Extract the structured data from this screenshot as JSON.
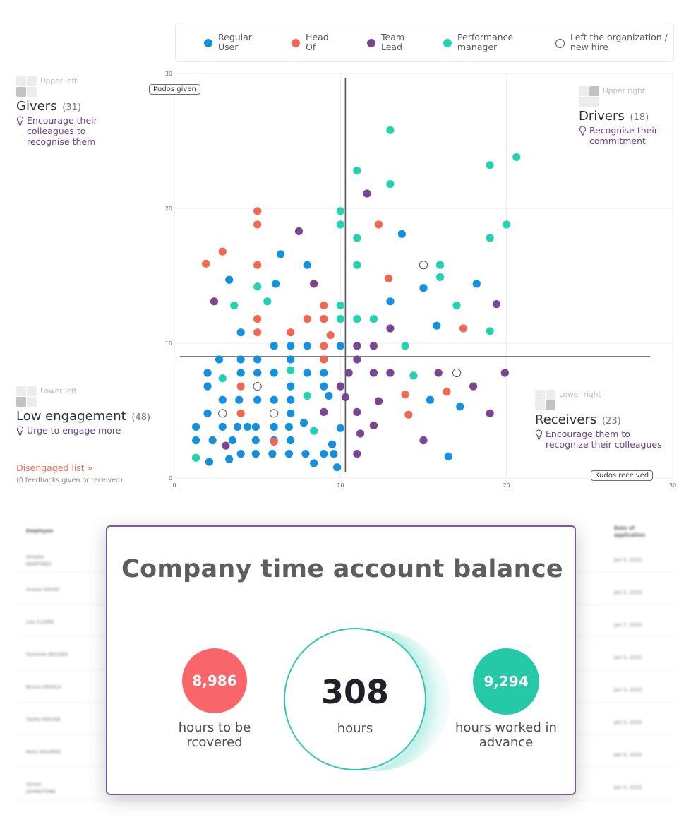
{
  "legend": [
    {
      "label": "Regular User",
      "color": "#1490e0",
      "hollow": false
    },
    {
      "label": "Head Of",
      "color": "#f2674f",
      "hollow": false
    },
    {
      "label": "Team Lead",
      "color": "#7a4592",
      "hollow": false
    },
    {
      "label": "Performance manager",
      "color": "#22d2b0",
      "hollow": false
    },
    {
      "label": "Left the organization / new hire",
      "color": "#ffffff",
      "hollow": true
    }
  ],
  "quadrants": {
    "upper_left": {
      "pos": "Upper left",
      "title": "Givers",
      "count": "(31)",
      "tip": "Encourage their colleagues to recognise them"
    },
    "upper_right": {
      "pos": "Upper right",
      "title": "Drivers",
      "count": "(18)",
      "tip": "Recognise their commitment"
    },
    "lower_left": {
      "pos": "Lower left",
      "title": "Low engagement",
      "count": "(48)",
      "tip": "Urge to engage more"
    },
    "lower_right": {
      "pos": "Lower right",
      "title": "Receivers",
      "count": "(23)",
      "tip": "Encourage them to recognize their colleagues"
    }
  },
  "disengaged": {
    "link": "Disengaged list »",
    "note": "(0 feedbacks given or received)"
  },
  "chart_data": {
    "type": "scatter",
    "xlabel": "Kudos received",
    "ylabel": "Kudos given",
    "xlim": [
      0,
      30
    ],
    "ylim": [
      0,
      30
    ],
    "xticks": [
      0,
      10,
      20,
      30
    ],
    "yticks": [
      0,
      10,
      20,
      30
    ],
    "threshold_x": 10.3,
    "threshold_y": 9,
    "grid": true,
    "series": [
      {
        "name": "Regular User",
        "color": "#1490e0",
        "points": [
          [
            1.3,
            3.8
          ],
          [
            1.3,
            2.8
          ],
          [
            2,
            7.8
          ],
          [
            2,
            6.8
          ],
          [
            2,
            4.8
          ],
          [
            2.1,
            1.2
          ],
          [
            2.3,
            2.8
          ],
          [
            2.7,
            8.8
          ],
          [
            2.9,
            5.8
          ],
          [
            2.9,
            3.8
          ],
          [
            3.3,
            1.4
          ],
          [
            3.3,
            14.7
          ],
          [
            3.5,
            2.8
          ],
          [
            3.8,
            3.8
          ],
          [
            3.9,
            5.8
          ],
          [
            4,
            1.8
          ],
          [
            4,
            7.8
          ],
          [
            4,
            8.8
          ],
          [
            4,
            10.8
          ],
          [
            4.4,
            3.8
          ],
          [
            4.9,
            3.8
          ],
          [
            4.9,
            2.8
          ],
          [
            4.9,
            1.8
          ],
          [
            5,
            5.8
          ],
          [
            5,
            7.8
          ],
          [
            5,
            8.8
          ],
          [
            5.9,
            1.8
          ],
          [
            6,
            4.8
          ],
          [
            6,
            3.8
          ],
          [
            6,
            5.8
          ],
          [
            6,
            2.8
          ],
          [
            6,
            7.8
          ],
          [
            6,
            9.8
          ],
          [
            6.1,
            14.4
          ],
          [
            6.4,
            16.6
          ],
          [
            6.9,
            1.8
          ],
          [
            6.9,
            3.8
          ],
          [
            7,
            2.8
          ],
          [
            7,
            4.8
          ],
          [
            7,
            5.8
          ],
          [
            7,
            6.8
          ],
          [
            7,
            9.8
          ],
          [
            7.9,
            1.8
          ],
          [
            7.8,
            4.1
          ],
          [
            8,
            9.8
          ],
          [
            8,
            7.8
          ],
          [
            8,
            15.8
          ],
          [
            8.4,
            1.1
          ],
          [
            9,
            1.8
          ],
          [
            9,
            6.8
          ],
          [
            9,
            7.8
          ],
          [
            9.3,
            6.1
          ],
          [
            9.5,
            2.5
          ],
          [
            9.6,
            1.8
          ],
          [
            9.8,
            0.8
          ],
          [
            10,
            3.7
          ],
          [
            10,
            9.8
          ],
          [
            13,
            13.1
          ],
          [
            13.7,
            18.1
          ],
          [
            15,
            14.1
          ],
          [
            15.4,
            5.8
          ],
          [
            15.8,
            11.3
          ],
          [
            16.5,
            1.6
          ],
          [
            17.2,
            5.3
          ],
          [
            18.2,
            14.4
          ],
          [
            7,
            8.8
          ]
        ]
      },
      {
        "name": "Head Of",
        "color": "#f2674f",
        "points": [
          [
            1.9,
            15.9
          ],
          [
            2.9,
            16.8
          ],
          [
            4,
            6.8
          ],
          [
            4,
            4.8
          ],
          [
            5,
            19.8
          ],
          [
            5,
            18.8
          ],
          [
            5,
            15.8
          ],
          [
            5,
            11.8
          ],
          [
            5,
            10.8
          ],
          [
            6,
            2.7
          ],
          [
            7,
            10.8
          ],
          [
            8,
            11.8
          ],
          [
            9,
            12.8
          ],
          [
            9,
            11.8
          ],
          [
            9,
            9.8
          ],
          [
            9,
            8.8
          ],
          [
            9.4,
            10.6
          ],
          [
            12.3,
            18.8
          ],
          [
            12.9,
            14.8
          ],
          [
            13.9,
            6.2
          ],
          [
            14.1,
            4.7
          ],
          [
            16.4,
            6.4
          ],
          [
            17.4,
            11.1
          ]
        ]
      },
      {
        "name": "Team Lead",
        "color": "#7a4592",
        "points": [
          [
            2.4,
            13.1
          ],
          [
            3.1,
            2.4
          ],
          [
            7.5,
            18.3
          ],
          [
            8.4,
            14.4
          ],
          [
            9,
            4.9
          ],
          [
            10,
            6.8
          ],
          [
            10.3,
            6
          ],
          [
            10.5,
            7.8
          ],
          [
            11,
            9.8
          ],
          [
            11,
            8.8
          ],
          [
            11,
            4.9
          ],
          [
            11,
            1.8
          ],
          [
            11.2,
            3.3
          ],
          [
            11.6,
            21.1
          ],
          [
            12,
            9.8
          ],
          [
            12,
            7.8
          ],
          [
            12,
            3.9
          ],
          [
            12.3,
            5.7
          ],
          [
            13,
            11.1
          ],
          [
            13,
            7.8
          ],
          [
            15,
            2.8
          ],
          [
            15.9,
            7.8
          ],
          [
            18,
            6.8
          ],
          [
            19,
            4.8
          ],
          [
            19.4,
            12.9
          ],
          [
            19.9,
            7.8
          ]
        ]
      },
      {
        "name": "Performance manager",
        "color": "#22d2b0",
        "points": [
          [
            1.3,
            1.5
          ],
          [
            2.9,
            7.4
          ],
          [
            3.6,
            12.8
          ],
          [
            5,
            14.2
          ],
          [
            5.6,
            13.1
          ],
          [
            7,
            8
          ],
          [
            8,
            6.1
          ],
          [
            8.4,
            3.5
          ],
          [
            10,
            19.8
          ],
          [
            10,
            18.8
          ],
          [
            10,
            12.8
          ],
          [
            10,
            11.8
          ],
          [
            11,
            22.8
          ],
          [
            11,
            17.8
          ],
          [
            11,
            15.8
          ],
          [
            11,
            11.8
          ],
          [
            12,
            11.8
          ],
          [
            13,
            25.8
          ],
          [
            13,
            21.8
          ],
          [
            13.9,
            9.8
          ],
          [
            14.4,
            7.6
          ],
          [
            16,
            15.8
          ],
          [
            16,
            14.9
          ],
          [
            17,
            12.8
          ],
          [
            19,
            23.2
          ],
          [
            19,
            17.8
          ],
          [
            19,
            10.9
          ],
          [
            20,
            18.8
          ],
          [
            20.6,
            23.8
          ]
        ]
      },
      {
        "name": "Left the organization / new hire",
        "color": "#ffffff",
        "hollow": true,
        "points": [
          [
            2.9,
            4.8
          ],
          [
            5,
            6.8
          ],
          [
            6,
            4.8
          ],
          [
            15,
            15.8
          ],
          [
            17,
            7.8
          ]
        ]
      }
    ]
  },
  "card": {
    "title": "Company time account balance",
    "to_recover_value": "8,986",
    "to_recover_label": "hours to be rcovered",
    "balance_value": "308",
    "balance_unit": "hours",
    "advance_value": "9,294",
    "advance_label": "hours worked in advance"
  },
  "background_table": {
    "headers": [
      "Employee",
      "Date of application"
    ],
    "rows": [
      [
        "Ornella MARTINEZ",
        "Jan 5, 2022"
      ],
      [
        "Ariane DAVID",
        "Jan 2, 2022"
      ],
      [
        "Leo CLAIRE",
        "Jan 7, 2022"
      ],
      [
        "Dominik BECKER",
        "Jan 3, 2022"
      ],
      [
        "Bruno ORSICA",
        "Jan 3, 2022"
      ],
      [
        "Sasha NGUGE",
        "Jan 4, 2022"
      ],
      [
        "Nela AGUIRRE",
        "Jan 4, 2022"
      ],
      [
        "Simon JOHNSTONE",
        "Jan 4, 2022"
      ]
    ]
  }
}
